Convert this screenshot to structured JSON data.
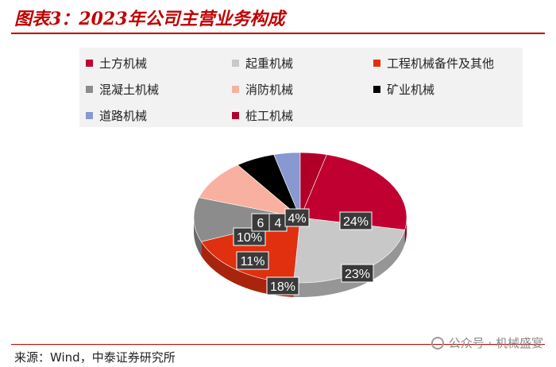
{
  "header": {
    "title": "图表3：2023年公司主营业务构成"
  },
  "footer": {
    "source": "来源：Wind，中泰证券研究所",
    "watermark": "公众号 · 机械盛宴"
  },
  "chart_data": {
    "type": "pie",
    "title": "",
    "legend_position": "top",
    "categories": [
      "土方机械",
      "起重机械",
      "工程机械备件及其他",
      "混凝土机械",
      "消防机械",
      "矿业机械",
      "道路机械",
      "桩工机械"
    ],
    "values": [
      24,
      23,
      18,
      11,
      10,
      6,
      4,
      4
    ],
    "labels": [
      "24%",
      "23%",
      "18%",
      "11%",
      "10%",
      "6",
      "4",
      "4%"
    ],
    "colors": [
      "#c00030",
      "#c8c8c8",
      "#e03010",
      "#8c8c8c",
      "#f8b0a0",
      "#000000",
      "#8898d0",
      "#b0002a"
    ]
  }
}
